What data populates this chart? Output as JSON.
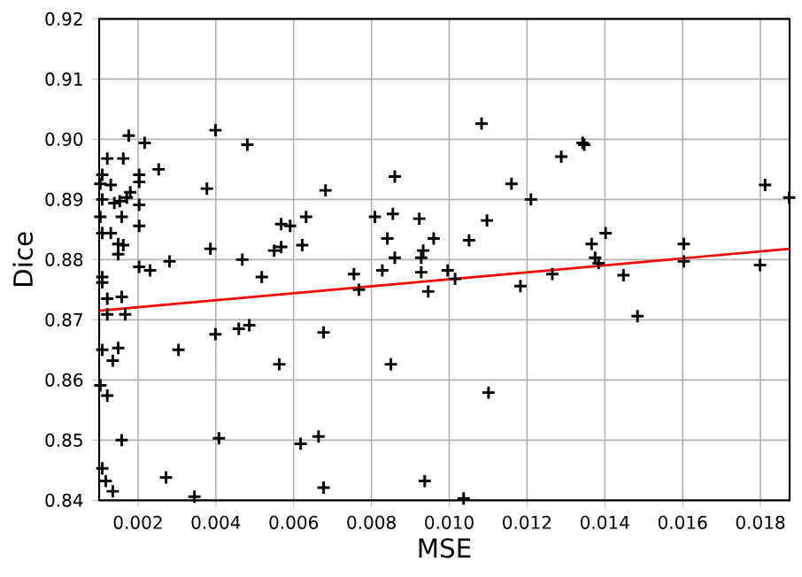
{
  "chart_data": {
    "type": "scatter",
    "xlabel": "MSE",
    "ylabel": "Dice",
    "xlim": [
      0.001,
      0.01875
    ],
    "ylim": [
      0.84,
      0.92
    ],
    "xticks": [
      {
        "value": 0.002,
        "label": "0.002"
      },
      {
        "value": 0.004,
        "label": "0.004"
      },
      {
        "value": 0.006,
        "label": "0.006"
      },
      {
        "value": 0.008,
        "label": "0.008"
      },
      {
        "value": 0.01,
        "label": "0.010"
      },
      {
        "value": 0.012,
        "label": "0.012"
      },
      {
        "value": 0.014,
        "label": "0.014"
      },
      {
        "value": 0.016,
        "label": "0.016"
      },
      {
        "value": 0.018,
        "label": "0.018"
      }
    ],
    "yticks": [
      {
        "value": 0.84,
        "label": "0.84"
      },
      {
        "value": 0.85,
        "label": "0.85"
      },
      {
        "value": 0.86,
        "label": "0.86"
      },
      {
        "value": 0.87,
        "label": "0.87"
      },
      {
        "value": 0.88,
        "label": "0.88"
      },
      {
        "value": 0.89,
        "label": "0.89"
      },
      {
        "value": 0.9,
        "label": "0.90"
      },
      {
        "value": 0.91,
        "label": "0.91"
      },
      {
        "value": 0.92,
        "label": "0.92"
      }
    ],
    "grid": true,
    "series": [
      {
        "color": "#000000",
        "marker": "cross",
        "x": [
          0.00176,
          0.00217,
          0.00399,
          0.00481,
          0.00121,
          0.00162,
          0.00253,
          0.00108,
          0.00203,
          0.00203,
          0.0013,
          0.00103,
          0.00377,
          0.0018,
          0.00171,
          0.00682,
          0.00108,
          0.00139,
          0.00153,
          0.00203,
          0.00158,
          0.00103,
          0.00568,
          0.00591,
          0.00632,
          0.0013,
          0.00108,
          0.00203,
          0.00149,
          0.00162,
          0.00149,
          0.00386,
          0.0055,
          0.00568,
          0.00622,
          0.00203,
          0.00231,
          0.00281,
          0.00468,
          0.00108,
          0.00108,
          0.00518,
          0.00121,
          0.00158,
          0.00167,
          0.00121,
          0.00399,
          0.00459,
          0.00486,
          0.00677,
          0.00149,
          0.00108,
          0.00304,
          0.00135,
          0.00563,
          0.00103,
          0.00121,
          0.00158,
          0.00408,
          0.00618,
          0.00664,
          0.00108,
          0.00117,
          0.00272,
          0.00135,
          0.00345,
          0.00677,
          0.0086,
          0.00809,
          0.00855,
          0.00923,
          0.00841,
          0.0096,
          0.0086,
          0.00933,
          0.00928,
          0.00755,
          0.00828,
          0.00928,
          0.00768,
          0.00946,
          0.00996,
          0.01015,
          0.01051,
          0.01083,
          0.01097,
          0.0116,
          0.0121,
          0.01288,
          0.01183,
          0.01265,
          0.0085,
          0.01101,
          0.00937,
          0.01037,
          0.01343,
          0.01347,
          0.01366,
          0.01402,
          0.01375,
          0.01384,
          0.01448,
          0.01484,
          0.01603,
          0.01603,
          0.01799,
          0.01812,
          0.01874
        ],
        "values": [
          0.9006,
          0.8994,
          0.9015,
          0.8991,
          0.8968,
          0.8968,
          0.895,
          0.8941,
          0.8941,
          0.8929,
          0.8924,
          0.8926,
          0.8918,
          0.8912,
          0.8903,
          0.8915,
          0.89,
          0.8894,
          0.8897,
          0.8891,
          0.8871,
          0.8871,
          0.8859,
          0.8856,
          0.8871,
          0.8844,
          0.8844,
          0.8856,
          0.8826,
          0.8824,
          0.8809,
          0.8818,
          0.8815,
          0.8821,
          0.8824,
          0.8788,
          0.8782,
          0.8797,
          0.88,
          0.8771,
          0.8762,
          0.8771,
          0.8735,
          0.8738,
          0.8709,
          0.8709,
          0.8676,
          0.8685,
          0.8691,
          0.8679,
          0.8653,
          0.865,
          0.865,
          0.8632,
          0.8626,
          0.8591,
          0.8574,
          0.85,
          0.8503,
          0.8494,
          0.8506,
          0.8453,
          0.8432,
          0.8438,
          0.8415,
          0.8406,
          0.8421,
          0.8938,
          0.8871,
          0.8876,
          0.8868,
          0.8835,
          0.8835,
          0.8803,
          0.8815,
          0.8803,
          0.8776,
          0.8782,
          0.8779,
          0.875,
          0.8747,
          0.8782,
          0.8768,
          0.8832,
          0.9026,
          0.8865,
          0.8926,
          0.89,
          0.8971,
          0.8756,
          0.8776,
          0.8626,
          0.8579,
          0.8432,
          0.8403,
          0.8994,
          0.8991,
          0.8826,
          0.8844,
          0.8803,
          0.8794,
          0.8774,
          0.8706,
          0.8826,
          0.8797,
          0.8791,
          0.8924,
          0.8903
        ]
      },
      {
        "type": "line",
        "color": "#ff0000",
        "x": [
          0.001,
          0.01875
        ],
        "values": [
          0.8715,
          0.8818
        ]
      }
    ]
  }
}
